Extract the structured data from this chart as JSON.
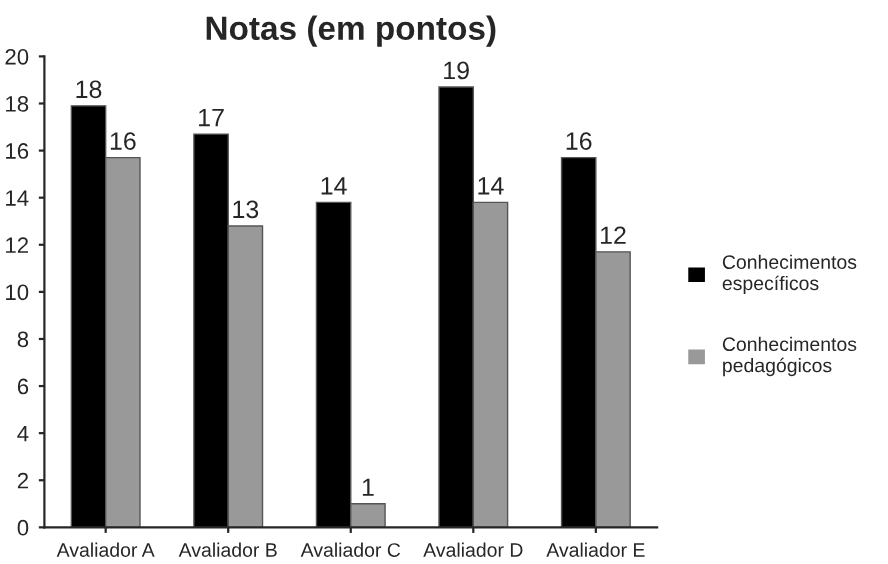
{
  "chart_data": {
    "type": "bar",
    "title": "Notas (em pontos)",
    "categories": [
      "Avaliador A",
      "Avaliador B",
      "Avaliador C",
      "Avaliador D",
      "Avaliador E"
    ],
    "series": [
      {
        "name": "Conhecimentos\nespecíficos",
        "color": "#000000",
        "values": [
          17.9,
          16.7,
          13.8,
          18.7,
          15.7
        ],
        "value_labels": [
          "18",
          "17",
          "14",
          "19",
          "16"
        ]
      },
      {
        "name": "Conhecimentos\npedagógicos",
        "color": "#999999",
        "values": [
          15.7,
          12.8,
          1.0,
          13.8,
          11.7
        ],
        "value_labels": [
          "16",
          "13",
          "1",
          "14",
          "12"
        ]
      }
    ],
    "ylim": [
      0,
      20
    ],
    "yticks": [
      0,
      2,
      4,
      6,
      8,
      10,
      12,
      14,
      16,
      18,
      20
    ],
    "grid": false,
    "legend": "right"
  }
}
